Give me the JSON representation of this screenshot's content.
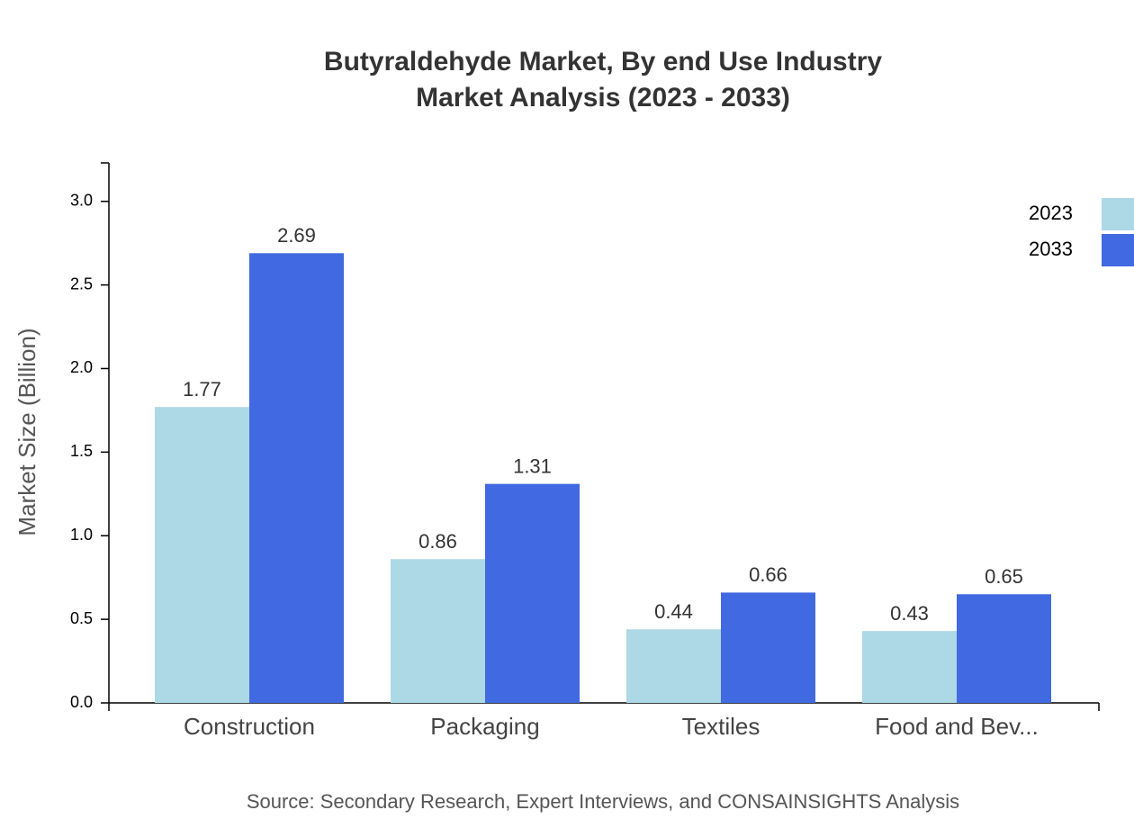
{
  "chart_data": {
    "type": "bar",
    "title": "Butyraldehyde Market, By end Use Industry",
    "subtitle": "Market Analysis (2023 - 2033)",
    "y_label": "Market Size (Billion)",
    "source": "Source: Secondary Research, Expert Interviews, and CONSAINSIGHTS Analysis",
    "categories": [
      "Construction",
      "Packaging",
      "Textiles",
      "Food and Bev..."
    ],
    "series": [
      {
        "name": "2023",
        "color": "#add8e6",
        "values": [
          1.77,
          0.86,
          0.44,
          0.43
        ]
      },
      {
        "name": "2033",
        "color": "#4169e1",
        "values": [
          2.69,
          1.31,
          0.66,
          0.65
        ]
      }
    ],
    "ylim": [
      0,
      3.23
    ],
    "yticks": [
      {
        "value": 0,
        "label": "0.0"
      },
      0.5,
      {
        "value": 1,
        "label": "1.0"
      },
      1.5,
      {
        "value": 2,
        "label": "2.0"
      },
      2.5,
      {
        "value": 3,
        "label": "3.0"
      }
    ],
    "grid": false,
    "legend": "top-right"
  }
}
